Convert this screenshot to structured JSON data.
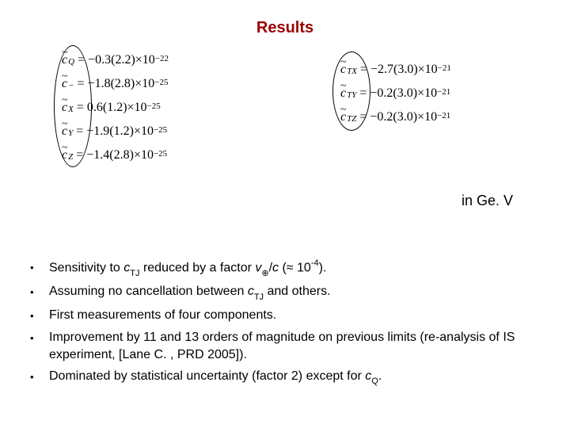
{
  "title": "Results",
  "unit_label": "in Ge. V",
  "equations_left": [
    {
      "sub": "Q",
      "rhs": "= −0.3(2.2)×10",
      "exp": "−22"
    },
    {
      "sub": "−",
      "rhs": "= −1.8(2.8)×10",
      "exp": "−25"
    },
    {
      "sub": "X",
      "rhs": "= 0.6(1.2)×10",
      "exp": "−25"
    },
    {
      "sub": "Y",
      "rhs": "= −1.9(1.2)×10",
      "exp": "−25"
    },
    {
      "sub": "Z",
      "rhs": "= −1.4(2.8)×10",
      "exp": "−25"
    }
  ],
  "equations_right": [
    {
      "sub": "TX",
      "rhs": "= −2.7(3.0)×10",
      "exp": "−21"
    },
    {
      "sub": "TY",
      "rhs": "= −0.2(3.0)×10",
      "exp": "−21"
    },
    {
      "sub": "TZ",
      "rhs": "= −0.2(3.0)×10",
      "exp": "−21"
    }
  ],
  "bullets": [
    {
      "html": "Sensitivity to <span class='ital'>c</span><em class='sub'>TJ</em> reduced by a factor <span class='ital'>v</span><em class='sub'>⊕</em>/<span class='ital'>c</span> (≈ 10<em class='sup'>-4</em>)."
    },
    {
      "html": "Assuming no cancellation between <span class='ital'>c</span><em class='sub'>TJ</em> and others."
    },
    {
      "html": "First measurements of four components."
    },
    {
      "html": "Improvement by 11 and 13 orders of magnitude on previous limits (re-analysis of IS experiment, [Lane C. , PRD 2005])."
    },
    {
      "html": "Dominated by statistical uncertainty (factor 2) except for <span class='ital'>c</span><em class='sub'>Q</em>."
    }
  ],
  "colors": {
    "title": "#990000",
    "text": "#000000",
    "background": "#ffffff"
  }
}
